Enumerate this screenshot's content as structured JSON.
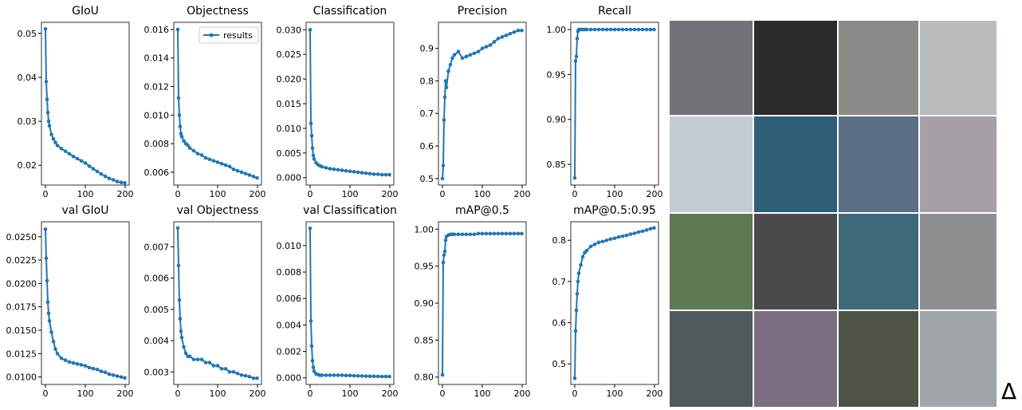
{
  "chart_data": [
    {
      "type": "line",
      "title": "GIoU",
      "x": [
        0,
        2,
        4,
        6,
        8,
        10,
        15,
        20,
        25,
        30,
        40,
        50,
        60,
        70,
        80,
        90,
        100,
        110,
        120,
        130,
        140,
        150,
        160,
        170,
        180,
        190,
        199
      ],
      "series": [
        {
          "color": "#1f77b4",
          "values": [
            0.051,
            0.039,
            0.035,
            0.032,
            0.03,
            0.029,
            0.027,
            0.026,
            0.0252,
            0.0245,
            0.0238,
            0.0232,
            0.0226,
            0.022,
            0.0215,
            0.021,
            0.0205,
            0.0198,
            0.0192,
            0.0186,
            0.018,
            0.0175,
            0.017,
            0.0167,
            0.0163,
            0.0161,
            0.016
          ]
        }
      ],
      "xlim": [
        -10,
        210
      ],
      "xticks": [
        0,
        100,
        200
      ],
      "ylim": [
        0.0155,
        0.0525
      ],
      "yticks": [
        0.02,
        0.03,
        0.04,
        0.05
      ]
    },
    {
      "type": "line",
      "title": "Objectness",
      "x": [
        0,
        2,
        4,
        6,
        8,
        10,
        15,
        20,
        25,
        30,
        40,
        50,
        60,
        70,
        80,
        90,
        100,
        110,
        120,
        130,
        140,
        150,
        160,
        170,
        180,
        190,
        199
      ],
      "series": [
        {
          "name": "results",
          "color": "#1f77b4",
          "values": [
            0.016,
            0.0112,
            0.01,
            0.0092,
            0.0087,
            0.0085,
            0.0082,
            0.008,
            0.0079,
            0.0077,
            0.0075,
            0.0073,
            0.0072,
            0.007,
            0.0069,
            0.0068,
            0.0067,
            0.0066,
            0.0065,
            0.0064,
            0.0062,
            0.0061,
            0.006,
            0.0059,
            0.0058,
            0.0057,
            0.0056
          ]
        }
      ],
      "xlim": [
        -10,
        210
      ],
      "xticks": [
        0,
        100,
        200
      ],
      "ylim": [
        0.0051,
        0.0165
      ],
      "yticks": [
        0.006,
        0.008,
        {
          "value": 0.01,
          "label": "0.010"
        },
        0.012,
        0.014,
        0.016
      ],
      "legend": "upper right"
    },
    {
      "type": "line",
      "title": "Classification",
      "x": [
        0,
        2,
        4,
        6,
        8,
        10,
        15,
        20,
        25,
        30,
        40,
        50,
        60,
        70,
        80,
        90,
        100,
        110,
        120,
        130,
        140,
        150,
        160,
        170,
        180,
        190,
        199
      ],
      "series": [
        {
          "color": "#1f77b4",
          "values": [
            0.03,
            0.011,
            0.0085,
            0.006,
            0.0045,
            0.0038,
            0.003,
            0.0026,
            0.0024,
            0.0022,
            0.002,
            0.0018,
            0.0017,
            0.0016,
            0.0015,
            0.0014,
            0.0013,
            0.0012,
            0.0011,
            0.001,
            0.0009,
            0.0008,
            0.0007,
            0.0007,
            0.0006,
            0.0006,
            0.0006
          ]
        }
      ],
      "xlim": [
        -10,
        210
      ],
      "xticks": [
        0,
        100,
        200
      ],
      "ylim": [
        -0.0015,
        0.0315
      ],
      "yticks": [
        {
          "value": 0,
          "label": "0.000"
        },
        0.005,
        {
          "value": 0.01,
          "label": "0.010"
        },
        0.015,
        {
          "value": 0.02,
          "label": "0.020"
        },
        0.025,
        {
          "value": 0.03,
          "label": "0.030"
        }
      ]
    },
    {
      "type": "line",
      "title": "Precision",
      "x": [
        0,
        2,
        4,
        6,
        8,
        10,
        15,
        20,
        25,
        30,
        40,
        50,
        60,
        70,
        80,
        90,
        100,
        110,
        120,
        130,
        140,
        150,
        160,
        170,
        180,
        190,
        199
      ],
      "series": [
        {
          "color": "#1f77b4",
          "values": [
            0.5,
            0.54,
            0.68,
            0.75,
            0.8,
            0.78,
            0.83,
            0.85,
            0.87,
            0.88,
            0.89,
            0.87,
            0.875,
            0.88,
            0.885,
            0.89,
            0.9,
            0.905,
            0.91,
            0.92,
            0.93,
            0.935,
            0.94,
            0.945,
            0.95,
            0.955,
            0.955
          ]
        }
      ],
      "xlim": [
        -10,
        210
      ],
      "xticks": [
        0,
        100,
        200
      ],
      "ylim": [
        0.48,
        0.98
      ],
      "yticks": [
        0.5,
        0.6,
        0.7,
        0.8,
        0.9
      ]
    },
    {
      "type": "line",
      "title": "Recall",
      "x": [
        0,
        2,
        4,
        6,
        8,
        10,
        15,
        20,
        25,
        30,
        40,
        50,
        60,
        70,
        80,
        90,
        100,
        110,
        120,
        130,
        140,
        150,
        160,
        170,
        180,
        190,
        199
      ],
      "series": [
        {
          "color": "#1f77b4",
          "values": [
            0.835,
            0.965,
            0.97,
            0.99,
            0.998,
            1,
            1,
            1,
            1,
            1,
            1,
            1,
            1,
            1,
            1,
            1,
            1,
            1,
            1,
            1,
            1,
            1,
            1,
            1,
            1,
            1,
            1
          ]
        }
      ],
      "xlim": [
        -10,
        210
      ],
      "xticks": [
        0,
        100,
        200
      ],
      "ylim": [
        0.827,
        1.008
      ],
      "yticks": [
        0.85,
        {
          "value": 0.9,
          "label": "0.90"
        },
        0.95,
        {
          "value": 1,
          "label": "1.00"
        }
      ]
    },
    {
      "type": "line",
      "title": "val GIoU",
      "x": [
        0,
        2,
        4,
        6,
        8,
        10,
        15,
        20,
        25,
        30,
        40,
        50,
        60,
        70,
        80,
        90,
        100,
        110,
        120,
        130,
        140,
        150,
        160,
        170,
        180,
        190,
        199
      ],
      "series": [
        {
          "color": "#1f77b4",
          "values": [
            0.0258,
            0.0227,
            0.0203,
            0.018,
            0.0168,
            0.016,
            0.0148,
            0.0138,
            0.013,
            0.0125,
            0.012,
            0.0118,
            0.0116,
            0.0115,
            0.0114,
            0.0113,
            0.0112,
            0.011,
            0.0109,
            0.0108,
            0.0106,
            0.0105,
            0.0103,
            0.0102,
            0.0101,
            0.01,
            0.0099
          ]
        }
      ],
      "xlim": [
        -10,
        210
      ],
      "xticks": [
        0,
        100,
        200
      ],
      "ylim": [
        0.0092,
        0.0266
      ],
      "yticks": [
        {
          "value": 0.01,
          "label": "0.0100"
        },
        0.0125,
        {
          "value": 0.015,
          "label": "0.0150"
        },
        0.0175,
        {
          "value": 0.02,
          "label": "0.0200"
        },
        0.0225,
        {
          "value": 0.025,
          "label": "0.0250"
        }
      ]
    },
    {
      "type": "line",
      "title": "val Objectness",
      "x": [
        0,
        2,
        4,
        6,
        8,
        10,
        15,
        20,
        25,
        30,
        40,
        50,
        60,
        70,
        80,
        90,
        100,
        110,
        120,
        130,
        140,
        150,
        160,
        170,
        180,
        190,
        199
      ],
      "series": [
        {
          "color": "#1f77b4",
          "values": [
            0.0076,
            0.0064,
            0.0053,
            0.0047,
            0.0043,
            0.0041,
            0.0038,
            0.0036,
            0.0035,
            0.0035,
            0.0034,
            0.0034,
            0.0034,
            0.0033,
            0.0033,
            0.0032,
            0.0032,
            0.0031,
            0.0031,
            0.003,
            0.003,
            0.00295,
            0.0029,
            0.00288,
            0.00285,
            0.0028,
            0.0028
          ]
        }
      ],
      "xlim": [
        -10,
        210
      ],
      "xticks": [
        0,
        100,
        200
      ],
      "ylim": [
        0.0026,
        0.0078
      ],
      "yticks": [
        0.003,
        0.004,
        0.005,
        0.006,
        0.007
      ]
    },
    {
      "type": "line",
      "title": "val Classification",
      "x": [
        0,
        2,
        4,
        6,
        8,
        10,
        15,
        20,
        25,
        30,
        40,
        50,
        60,
        70,
        80,
        90,
        100,
        110,
        120,
        130,
        140,
        150,
        160,
        170,
        180,
        190,
        199
      ],
      "series": [
        {
          "color": "#1f77b4",
          "values": [
            0.0113,
            0.0043,
            0.0024,
            0.0013,
            0.0008,
            0.0005,
            0.0003,
            0.00025,
            0.0002,
            0.0002,
            0.0002,
            0.0002,
            0.0002,
            0.0002,
            0.0002,
            0.00018,
            0.00018,
            0.00016,
            0.00015,
            0.00014,
            0.00013,
            0.00012,
            0.00012,
            0.00011,
            0.0001,
            0.0001,
            0.0001
          ]
        }
      ],
      "xlim": [
        -10,
        210
      ],
      "xticks": [
        0,
        100,
        200
      ],
      "ylim": [
        -0.0005,
        0.0118
      ],
      "yticks": [
        {
          "value": 0,
          "label": "0.000"
        },
        0.002,
        0.004,
        0.006,
        0.008,
        {
          "value": 0.01,
          "label": "0.010"
        }
      ]
    },
    {
      "type": "line",
      "title": "mAP@0.5",
      "x": [
        0,
        2,
        4,
        6,
        8,
        10,
        15,
        20,
        25,
        30,
        40,
        50,
        60,
        70,
        80,
        90,
        100,
        110,
        120,
        130,
        140,
        150,
        160,
        170,
        180,
        190,
        199
      ],
      "series": [
        {
          "color": "#1f77b4",
          "values": [
            0.803,
            0.955,
            0.965,
            0.97,
            0.985,
            0.99,
            0.992,
            0.993,
            0.993,
            0.993,
            0.993,
            0.993,
            0.993,
            0.993,
            0.993,
            0.994,
            0.994,
            0.994,
            0.994,
            0.994,
            0.994,
            0.994,
            0.994,
            0.994,
            0.994,
            0.994,
            0.994
          ]
        }
      ],
      "xlim": [
        -10,
        210
      ],
      "xticks": [
        0,
        100,
        200
      ],
      "ylim": [
        0.79,
        1.01
      ],
      "yticks": [
        {
          "value": 0.8,
          "label": "0.80"
        },
        0.85,
        {
          "value": 0.9,
          "label": "0.90"
        },
        0.95,
        {
          "value": 1,
          "label": "1.00"
        }
      ]
    },
    {
      "type": "line",
      "title": "mAP@0.5:0.95",
      "x": [
        0,
        2,
        4,
        6,
        8,
        10,
        15,
        20,
        25,
        30,
        40,
        50,
        60,
        70,
        80,
        90,
        100,
        110,
        120,
        130,
        140,
        150,
        160,
        170,
        180,
        190,
        199
      ],
      "series": [
        {
          "color": "#1f77b4",
          "values": [
            0.465,
            0.58,
            0.63,
            0.67,
            0.7,
            0.72,
            0.74,
            0.76,
            0.77,
            0.775,
            0.785,
            0.79,
            0.795,
            0.797,
            0.8,
            0.803,
            0.805,
            0.808,
            0.81,
            0.812,
            0.815,
            0.817,
            0.82,
            0.822,
            0.825,
            0.828,
            0.83
          ]
        }
      ],
      "xlim": [
        -10,
        210
      ],
      "xticks": [
        0,
        100,
        200
      ],
      "ylim": [
        0.45,
        0.845
      ],
      "yticks": [
        0.5,
        0.6,
        0.7,
        0.8
      ]
    }
  ],
  "symbol": "Δ"
}
